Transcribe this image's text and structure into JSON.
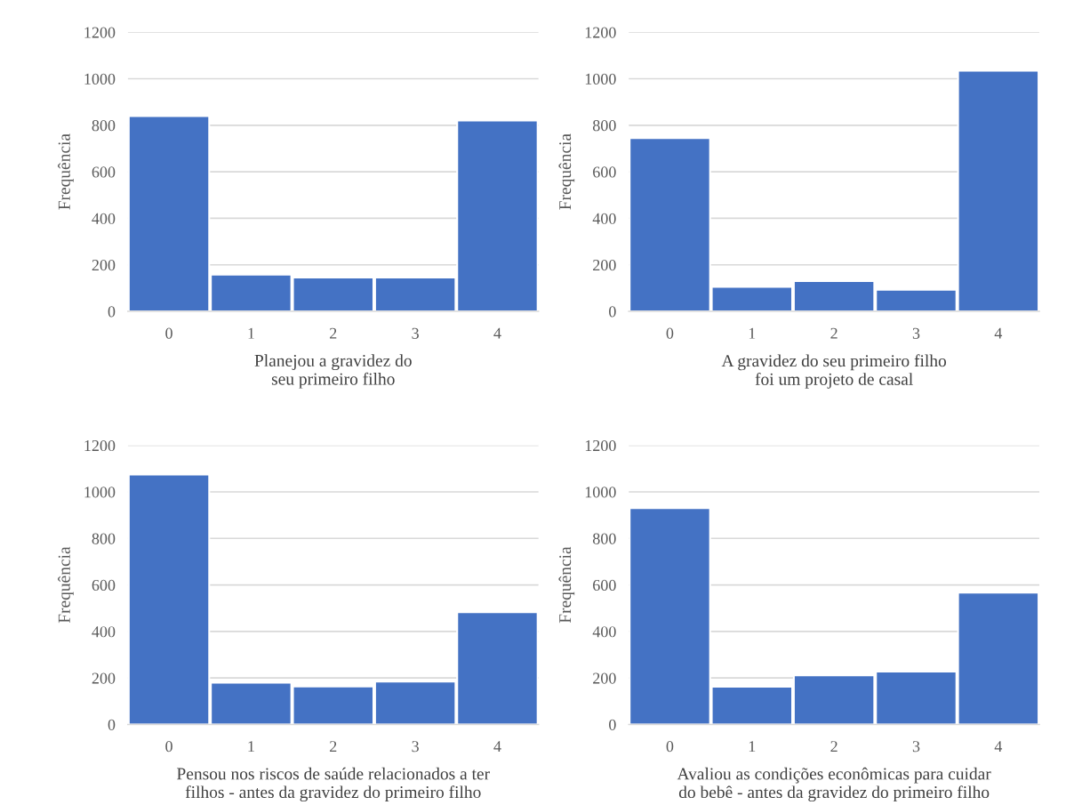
{
  "chart_data": [
    {
      "type": "bar",
      "categories": [
        "0",
        "1",
        "2",
        "3",
        "4"
      ],
      "values": [
        840,
        158,
        146,
        146,
        820
      ],
      "color": "#4472c4",
      "xlabel": "Planejou a gravidez do\nseu primeiro filho",
      "ylabel": "Frequência",
      "ylim": [
        0,
        1200
      ],
      "yticks": [
        0,
        200,
        400,
        600,
        800,
        1000,
        1200
      ],
      "grid": "y"
    },
    {
      "type": "bar",
      "categories": [
        "0",
        "1",
        "2",
        "3",
        "4"
      ],
      "values": [
        745,
        105,
        130,
        93,
        1035
      ],
      "color": "#4472c4",
      "xlabel": "A gravidez do seu primeiro filho\nfoi um projeto de casal",
      "ylabel": "Frequência",
      "ylim": [
        0,
        1200
      ],
      "yticks": [
        0,
        200,
        400,
        600,
        800,
        1000,
        1200
      ],
      "grid": "y"
    },
    {
      "type": "bar",
      "categories": [
        "0",
        "1",
        "2",
        "3",
        "4"
      ],
      "values": [
        1075,
        180,
        164,
        185,
        483
      ],
      "color": "#4472c4",
      "xlabel": "Pensou nos riscos de saúde relacionados a ter\nfilhos - antes da gravidez do primeiro filho",
      "ylabel": "Frequência",
      "ylim": [
        0,
        1200
      ],
      "yticks": [
        0,
        200,
        400,
        600,
        800,
        1000,
        1200
      ],
      "grid": "y"
    },
    {
      "type": "bar",
      "categories": [
        "0",
        "1",
        "2",
        "3",
        "4"
      ],
      "values": [
        930,
        163,
        211,
        228,
        567
      ],
      "color": "#4472c4",
      "xlabel": "Avaliou as condições econômicas para cuidar\ndo bebê - antes da gravidez do primeiro filho",
      "ylabel": "Frequência",
      "ylim": [
        0,
        1200
      ],
      "yticks": [
        0,
        200,
        400,
        600,
        800,
        1000,
        1200
      ],
      "grid": "y"
    }
  ]
}
